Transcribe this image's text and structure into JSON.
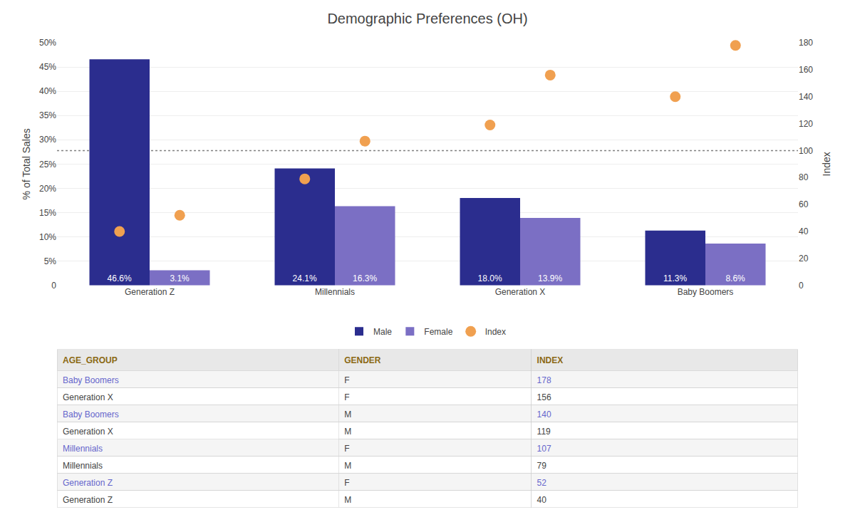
{
  "chart_data": [
    {
      "type": "bar",
      "title": "Demographic Preferences (OH)",
      "categories": [
        "Generation Z",
        "Millennials",
        "Generation X",
        "Baby Boomers"
      ],
      "series": [
        {
          "name": "Male",
          "type": "bar",
          "color": "#2b2d8e",
          "values": [
            46.6,
            24.1,
            18.0,
            11.3
          ],
          "value_labels": [
            "46.6%",
            "24.1%",
            "18.0%",
            "11.3%"
          ]
        },
        {
          "name": "Female",
          "type": "bar",
          "color": "#7b6fc4",
          "values": [
            3.1,
            16.3,
            13.9,
            8.6
          ],
          "value_labels": [
            "3.1%",
            "16.3%",
            "13.9%",
            "8.6%"
          ]
        },
        {
          "name": "Index",
          "type": "scatter",
          "axis": "y2",
          "color": "#f0a050",
          "marker": "circle",
          "values": [
            40,
            79,
            119,
            140
          ]
        },
        {
          "name": "Index",
          "type": "scatter",
          "axis": "y2",
          "color": "#f0a050",
          "marker": "circle",
          "values": [
            52,
            107,
            156,
            178
          ]
        }
      ],
      "ylabel": "% of Total Sales",
      "y2label": "Index",
      "ylim": [
        0,
        50
      ],
      "yticks": [
        0,
        {
          "value": 5,
          "label": "5%"
        },
        {
          "value": 10,
          "label": "10%"
        },
        {
          "value": 15,
          "label": "15%"
        },
        {
          "value": 20,
          "label": "20%"
        },
        {
          "value": 25,
          "label": "25%"
        },
        {
          "value": 30,
          "label": "30%"
        },
        {
          "value": 35,
          "label": "35%"
        },
        {
          "value": 40,
          "label": "40%"
        },
        {
          "value": 45,
          "label": "45%"
        },
        {
          "value": 50,
          "label": "50%"
        }
      ],
      "y2lim": [
        0,
        180
      ],
      "y2ticks": [
        0,
        20,
        40,
        60,
        80,
        100,
        120,
        140,
        160,
        180
      ],
      "reference_lines": [
        {
          "axis": "y2",
          "value": 100,
          "color": "gray",
          "line_style": "dotted"
        }
      ],
      "grid": true,
      "legend": "bottom",
      "data_labels": true
    },
    {
      "type": "table",
      "columns": [
        "AGE_GROUP",
        "GENDER",
        "INDEX"
      ],
      "header_color": "#8B6914",
      "color": "#444444",
      "rows": [
        [
          "Baby Boomers",
          "F",
          "178"
        ],
        [
          "Generation X",
          "F",
          "156"
        ],
        [
          "Baby Boomers",
          "M",
          "140"
        ],
        [
          "Generation X",
          "M",
          "119"
        ],
        [
          "Millennials",
          "F",
          "107"
        ],
        [
          "Millennials",
          "M",
          "79"
        ],
        [
          "Generation Z",
          "F",
          "52"
        ],
        [
          "Generation Z",
          "M",
          "40"
        ]
      ],
      "colors": [
        "#6666cc",
        "#444444",
        "#6666cc",
        "#444444",
        "#6666cc",
        "#444444",
        "#6666cc",
        "#444444"
      ]
    }
  ]
}
